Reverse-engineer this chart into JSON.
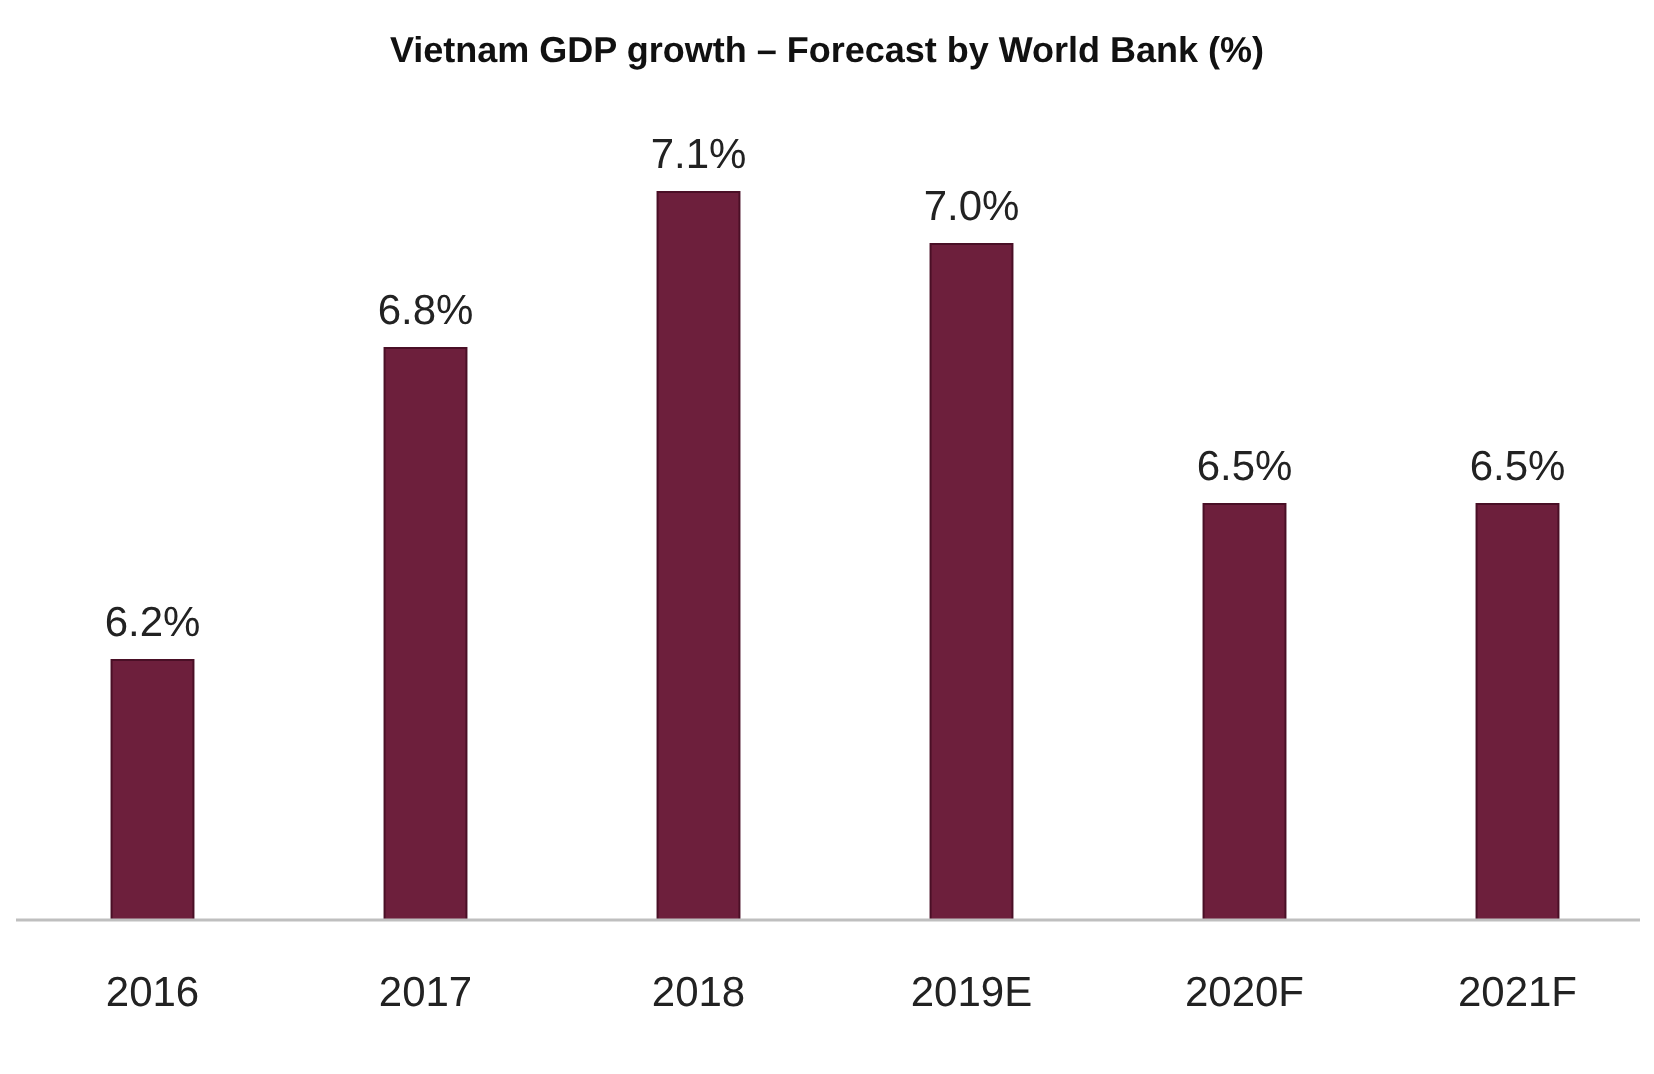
{
  "chart_data": {
    "type": "bar",
    "title": "Vietnam GDP growth – Forecast by World Bank (%)",
    "categories": [
      "2016",
      "2017",
      "2018",
      "2019E",
      "2020F",
      "2021F"
    ],
    "values": [
      6.2,
      6.8,
      7.1,
      7.0,
      6.5,
      6.5
    ],
    "value_labels": [
      "6.2%",
      "6.8%",
      "7.1%",
      "7.0%",
      "6.5%",
      "6.5%"
    ],
    "color": "#6d1f3c",
    "ylim": [
      5.7,
      7.1
    ],
    "tick_labels": "x"
  }
}
